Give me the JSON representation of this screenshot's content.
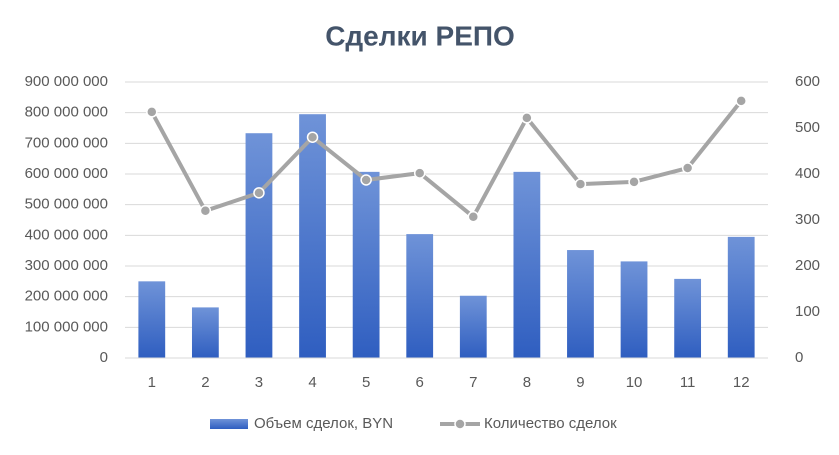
{
  "chart_data": {
    "type": "bar-line",
    "title": "Сделки РЕПО",
    "categories": [
      "1",
      "2",
      "3",
      "4",
      "5",
      "6",
      "7",
      "8",
      "9",
      "10",
      "11",
      "12"
    ],
    "series": [
      {
        "name": "Объем сделок, BYN",
        "type": "bar",
        "color": "#4472c4",
        "values": [
          250000000,
          165000000,
          733000000,
          795000000,
          607000000,
          404000000,
          203000000,
          607000000,
          352000000,
          315000000,
          258000000,
          395000000
        ]
      },
      {
        "name": "Количество сделок",
        "type": "line",
        "axis": "y2",
        "color": "#a5a5a5",
        "values": [
          535,
          320,
          359,
          480,
          387,
          402,
          307,
          522,
          378,
          383,
          413,
          559
        ]
      }
    ],
    "ylim": [
      0,
      900000000
    ],
    "yticks": [
      {
        "value": 0,
        "label": "0"
      },
      {
        "value": 100000000,
        "label": "100 000 000"
      },
      {
        "value": 200000000,
        "label": "200 000 000"
      },
      {
        "value": 300000000,
        "label": "300 000 000"
      },
      {
        "value": 400000000,
        "label": "400 000 000"
      },
      {
        "value": 500000000,
        "label": "500 000 000"
      },
      {
        "value": 600000000,
        "label": "600 000 000"
      },
      {
        "value": 700000000,
        "label": "700 000 000"
      },
      {
        "value": 800000000,
        "label": "800 000 000"
      },
      {
        "value": 900000000,
        "label": "900 000 000"
      }
    ],
    "y2lim": [
      0,
      600
    ],
    "y2ticks": [
      0,
      100,
      200,
      300,
      400,
      500,
      600
    ],
    "grid": true,
    "legend": "bottom"
  }
}
